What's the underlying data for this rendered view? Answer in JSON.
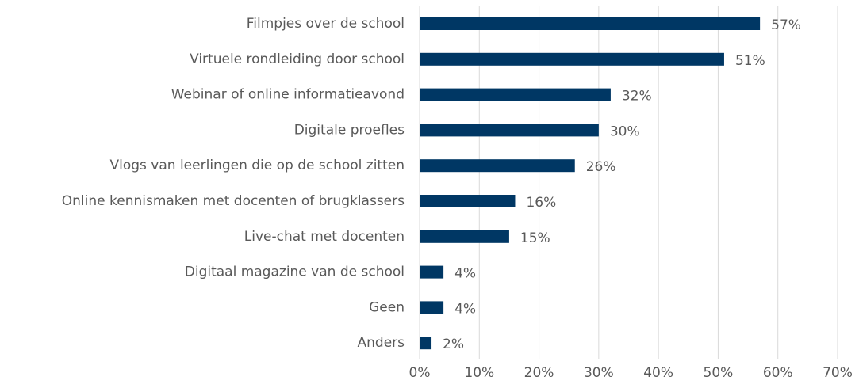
{
  "chart_data": {
    "type": "bar",
    "orientation": "horizontal",
    "categories": [
      "Filmpjes over de school",
      "Virtuele rondleiding door school",
      "Webinar of online informatieavond",
      "Digitale proefles",
      "Vlogs van leerlingen die op de school zitten",
      "Online kennismaken met docenten of brugklassers",
      "Live-chat met docenten",
      "Digitaal magazine van de school",
      "Geen",
      "Anders"
    ],
    "values": [
      57,
      51,
      32,
      30,
      26,
      16,
      15,
      4,
      4,
      2
    ],
    "value_labels": [
      "57%",
      "51%",
      "32%",
      "30%",
      "26%",
      "16%",
      "15%",
      "4%",
      "4%",
      "2%"
    ],
    "color": "#003764",
    "xlim": [
      0,
      70
    ],
    "xticks": [
      {
        "value": 0,
        "label": "0%"
      },
      {
        "value": 10,
        "label": "10%"
      },
      {
        "value": 20,
        "label": "20%"
      },
      {
        "value": 30,
        "label": "30%"
      },
      {
        "value": 40,
        "label": "40%"
      },
      {
        "value": 50,
        "label": "50%"
      },
      {
        "value": 60,
        "label": "60%"
      },
      {
        "value": 70,
        "label": "70%"
      }
    ],
    "grid": true
  }
}
